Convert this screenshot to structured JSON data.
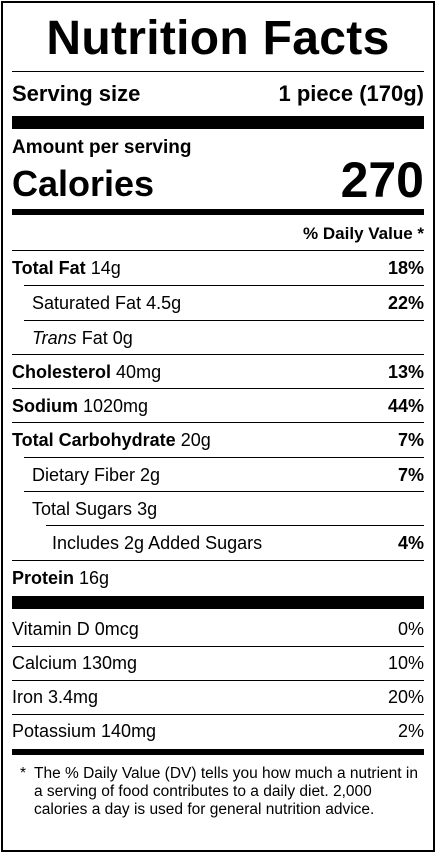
{
  "title": "Nutrition Facts",
  "serving": {
    "label": "Serving size",
    "value": "1 piece (170g)"
  },
  "amount_per_serving": "Amount per serving",
  "calories": {
    "label": "Calories",
    "value": "270"
  },
  "daily_value_header": "% Daily Value *",
  "nutrients": {
    "total_fat": {
      "label": "Total Fat",
      "amount": "14g",
      "dv": "18%"
    },
    "saturated_fat": {
      "label": "Saturated Fat",
      "amount": "4.5g",
      "dv": "22%"
    },
    "trans_fat": {
      "label": "Trans",
      "suffix": "Fat",
      "amount": "0g"
    },
    "cholesterol": {
      "label": "Cholesterol",
      "amount": "40mg",
      "dv": "13%"
    },
    "sodium": {
      "label": "Sodium",
      "amount": "1020mg",
      "dv": "44%"
    },
    "total_carbohydrate": {
      "label": "Total Carbohydrate",
      "amount": "20g",
      "dv": "7%"
    },
    "dietary_fiber": {
      "label": "Dietary Fiber",
      "amount": "2g",
      "dv": "7%"
    },
    "total_sugars": {
      "label": "Total Sugars",
      "amount": "3g"
    },
    "added_sugars": {
      "label": "Includes 2g Added Sugars",
      "dv": "4%"
    },
    "protein": {
      "label": "Protein",
      "amount": "16g"
    }
  },
  "vitamins": [
    {
      "label": "Vitamin D 0mcg",
      "dv": "0%"
    },
    {
      "label": "Calcium 130mg",
      "dv": "10%"
    },
    {
      "label": "Iron 3.4mg",
      "dv": "20%"
    },
    {
      "label": "Potassium 140mg",
      "dv": "2%"
    }
  ],
  "footnote": {
    "marker": "*",
    "text": "The % Daily Value (DV) tells you how much a nutrient in a serving of food contributes to a daily diet. 2,000 calories a day is used for general nutrition advice."
  }
}
